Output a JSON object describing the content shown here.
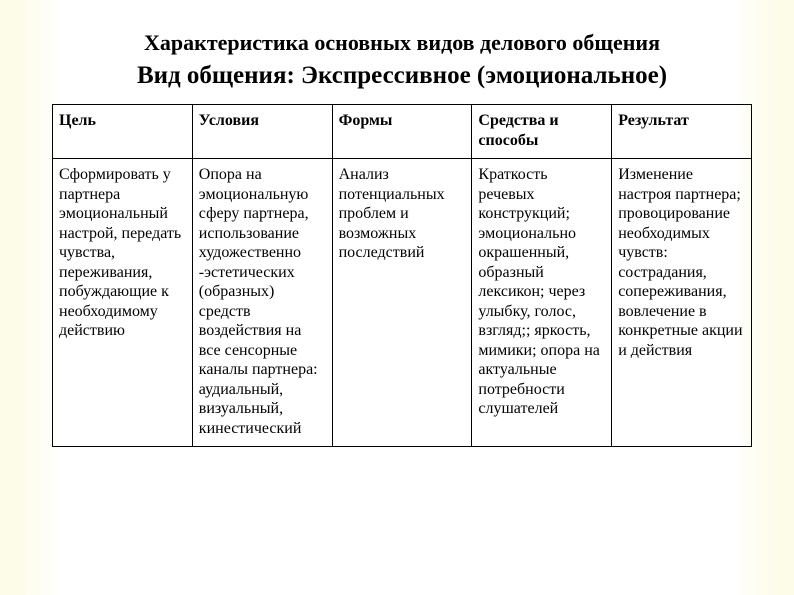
{
  "title1": "Характеристика основных видов делового общения",
  "title2": "Вид общения: Экспрессивное (эмоциональное)",
  "table": {
    "headers": [
      "Цель",
      "Условия",
      "Формы",
      "Средства и способы",
      "Результат"
    ],
    "row": [
      "Сформировать у партнера эмоциональный настрой, передать чувства, переживания, побуждающие к необходимому действию",
      "Опора на эмоциональную сферу партнера, использование художественно -эстетических (образных) средств воздействия на все сенсорные каналы партнера: аудиальный, визуальный, кинестический",
      "Анализ потенциальных проблем и возможных последствий",
      "Краткость речевых конструкций; эмоционально окрашенный, образный лексикон; через улыбку, голос, взгляд;; яркость, мимики; опора на актуальные потребности слушателей",
      "Изменение настроя партнера; провоцирование необходимых чувств: сострадания, сопереживания, вовлечение в конкретные акции и действия"
    ]
  }
}
